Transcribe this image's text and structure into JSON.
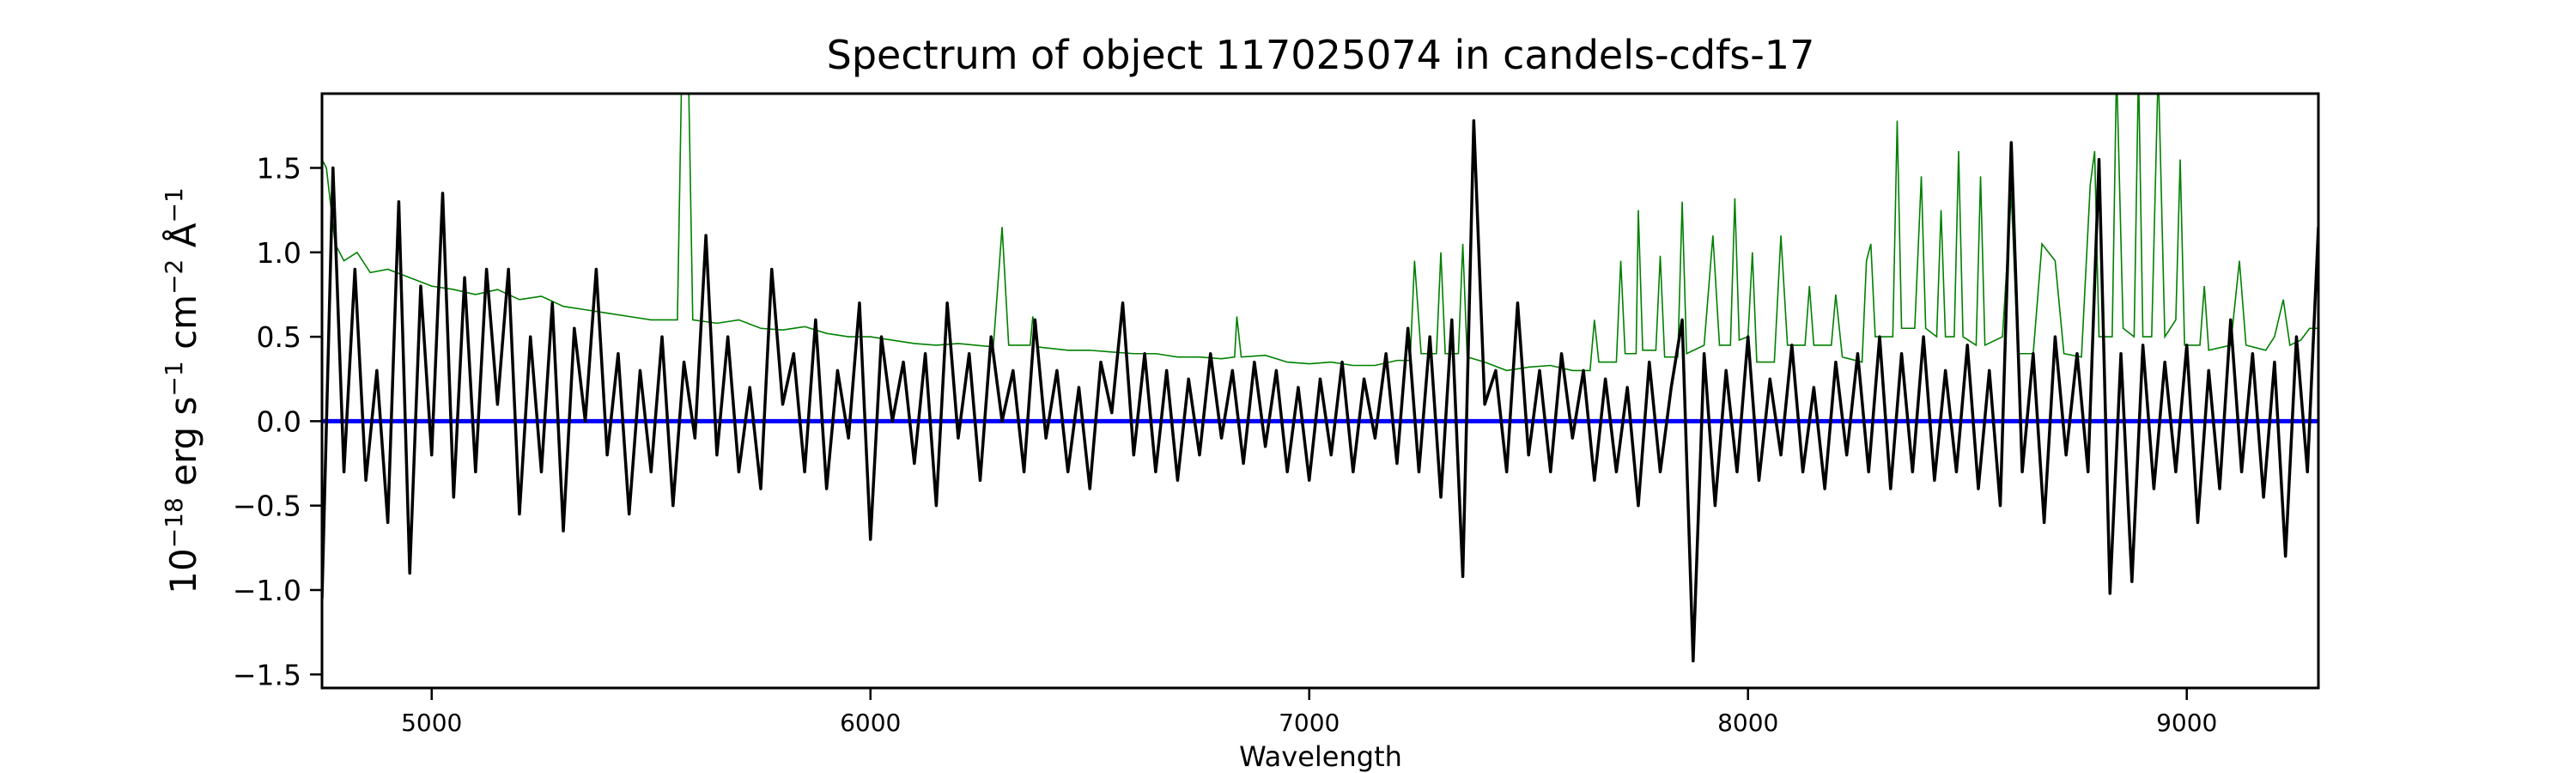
{
  "chart_data": {
    "type": "line",
    "title": "Spectrum of object 117025074 in candels-cdfs-17",
    "xlabel": "Wavelength",
    "ylabel_parts": [
      "10",
      "−18",
      " erg s",
      "−1",
      " cm",
      "−2",
      " Å",
      "−1"
    ],
    "xlim": [
      4750,
      9300
    ],
    "ylim": [
      -1.58,
      1.94
    ],
    "xticks": [
      5000,
      6000,
      7000,
      8000,
      9000
    ],
    "xtick_labels": [
      "5000",
      "6000",
      "7000",
      "8000",
      "9000"
    ],
    "yticks": [
      -1.5,
      -1.0,
      -0.5,
      0.0,
      0.5,
      1.0,
      1.5
    ],
    "ytick_labels": [
      "−1.5",
      "−1.0",
      "−0.5",
      "0.0",
      "0.5",
      "1.0",
      "1.5"
    ],
    "grid": false,
    "colors": {
      "flux": "#000000",
      "contam": "#008000",
      "model": "#0000ff"
    },
    "series": [
      {
        "name": "flux",
        "x_start": 4750,
        "x_step": 25,
        "values": [
          -1.05,
          1.5,
          -0.3,
          0.9,
          -0.35,
          0.3,
          -0.6,
          1.3,
          -0.9,
          0.8,
          -0.2,
          1.35,
          -0.45,
          0.85,
          -0.3,
          0.9,
          0.1,
          0.9,
          -0.55,
          0.5,
          -0.3,
          0.7,
          -0.65,
          0.55,
          0.0,
          0.9,
          -0.2,
          0.4,
          -0.55,
          0.3,
          -0.3,
          0.5,
          -0.5,
          0.35,
          -0.1,
          1.1,
          -0.2,
          0.5,
          -0.3,
          0.2,
          -0.4,
          0.9,
          0.1,
          0.4,
          -0.3,
          0.6,
          -0.4,
          0.3,
          -0.1,
          0.7,
          -0.7,
          0.5,
          0.0,
          0.35,
          -0.25,
          0.4,
          -0.5,
          0.7,
          -0.1,
          0.4,
          -0.35,
          0.5,
          0.0,
          0.3,
          -0.3,
          0.6,
          -0.1,
          0.3,
          -0.3,
          0.2,
          -0.4,
          0.35,
          0.05,
          0.7,
          -0.2,
          0.4,
          -0.3,
          0.3,
          -0.35,
          0.25,
          -0.2,
          0.4,
          -0.1,
          0.3,
          -0.25,
          0.35,
          -0.15,
          0.3,
          -0.3,
          0.2,
          -0.35,
          0.25,
          -0.2,
          0.35,
          -0.3,
          0.25,
          -0.1,
          0.4,
          -0.25,
          0.55,
          -0.3,
          0.5,
          -0.45,
          0.6,
          -0.92,
          1.78,
          0.1,
          0.3,
          -0.3,
          0.7,
          -0.2,
          0.3,
          -0.3,
          0.4,
          -0.1,
          0.3,
          -0.35,
          0.25,
          -0.3,
          0.2,
          -0.5,
          0.35,
          -0.3,
          0.2,
          0.6,
          -1.42,
          0.4,
          -0.5,
          0.3,
          -0.3,
          0.5,
          -0.35,
          0.25,
          -0.2,
          0.45,
          -0.3,
          0.2,
          -0.4,
          0.35,
          -0.2,
          0.4,
          -0.3,
          0.5,
          -0.4,
          0.4,
          -0.3,
          0.5,
          -0.35,
          0.3,
          -0.3,
          0.45,
          -0.4,
          0.3,
          -0.5,
          1.65,
          -0.3,
          0.4,
          -0.6,
          0.5,
          -0.2,
          0.4,
          -0.3,
          1.55,
          -1.02,
          0.4,
          -0.95,
          0.45,
          -0.4,
          0.35,
          -0.3,
          0.45,
          -0.6,
          0.3,
          -0.4,
          0.6,
          -0.3,
          0.4,
          -0.45,
          0.35,
          -0.8,
          0.5,
          -0.3,
          1.15
        ]
      },
      {
        "name": "contamination",
        "points": [
          [
            4750,
            1.55
          ],
          [
            4760,
            1.5
          ],
          [
            4780,
            1.05
          ],
          [
            4800,
            0.95
          ],
          [
            4830,
            1.0
          ],
          [
            4860,
            0.88
          ],
          [
            4900,
            0.9
          ],
          [
            4950,
            0.85
          ],
          [
            5000,
            0.8
          ],
          [
            5050,
            0.78
          ],
          [
            5100,
            0.75
          ],
          [
            5150,
            0.78
          ],
          [
            5200,
            0.72
          ],
          [
            5250,
            0.74
          ],
          [
            5300,
            0.68
          ],
          [
            5350,
            0.66
          ],
          [
            5400,
            0.64
          ],
          [
            5450,
            0.62
          ],
          [
            5500,
            0.6
          ],
          [
            5560,
            0.6
          ],
          [
            5570,
            2.1
          ],
          [
            5585,
            2.1
          ],
          [
            5595,
            0.6
          ],
          [
            5650,
            0.58
          ],
          [
            5700,
            0.6
          ],
          [
            5750,
            0.55
          ],
          [
            5800,
            0.54
          ],
          [
            5850,
            0.56
          ],
          [
            5900,
            0.52
          ],
          [
            5950,
            0.5
          ],
          [
            6000,
            0.5
          ],
          [
            6050,
            0.48
          ],
          [
            6100,
            0.46
          ],
          [
            6150,
            0.45
          ],
          [
            6200,
            0.46
          ],
          [
            6280,
            0.44
          ],
          [
            6300,
            1.15
          ],
          [
            6315,
            0.45
          ],
          [
            6364,
            0.45
          ],
          [
            6370,
            0.62
          ],
          [
            6380,
            0.44
          ],
          [
            6450,
            0.42
          ],
          [
            6500,
            0.42
          ],
          [
            6550,
            0.41
          ],
          [
            6600,
            0.4
          ],
          [
            6650,
            0.4
          ],
          [
            6700,
            0.38
          ],
          [
            6750,
            0.38
          ],
          [
            6800,
            0.37
          ],
          [
            6830,
            0.38
          ],
          [
            6835,
            0.62
          ],
          [
            6845,
            0.38
          ],
          [
            6900,
            0.39
          ],
          [
            6950,
            0.35
          ],
          [
            7000,
            0.34
          ],
          [
            7050,
            0.35
          ],
          [
            7100,
            0.33
          ],
          [
            7150,
            0.33
          ],
          [
            7200,
            0.36
          ],
          [
            7230,
            0.36
          ],
          [
            7240,
            0.95
          ],
          [
            7255,
            0.4
          ],
          [
            7290,
            0.4
          ],
          [
            7300,
            1.0
          ],
          [
            7310,
            0.4
          ],
          [
            7340,
            0.4
          ],
          [
            7350,
            1.05
          ],
          [
            7360,
            0.38
          ],
          [
            7400,
            0.35
          ],
          [
            7430,
            0.32
          ],
          [
            7450,
            0.3
          ],
          [
            7500,
            0.32
          ],
          [
            7550,
            0.33
          ],
          [
            7600,
            0.3
          ],
          [
            7640,
            0.3
          ],
          [
            7650,
            0.6
          ],
          [
            7660,
            0.35
          ],
          [
            7700,
            0.35
          ],
          [
            7710,
            0.95
          ],
          [
            7720,
            0.4
          ],
          [
            7745,
            0.4
          ],
          [
            7750,
            1.25
          ],
          [
            7760,
            0.42
          ],
          [
            7790,
            0.42
          ],
          [
            7800,
            0.98
          ],
          [
            7810,
            0.38
          ],
          [
            7840,
            0.38
          ],
          [
            7850,
            1.3
          ],
          [
            7860,
            0.4
          ],
          [
            7900,
            0.45
          ],
          [
            7920,
            1.1
          ],
          [
            7935,
            0.45
          ],
          [
            7960,
            0.45
          ],
          [
            7970,
            1.32
          ],
          [
            7980,
            0.48
          ],
          [
            8000,
            0.5
          ],
          [
            8010,
            1.0
          ],
          [
            8020,
            0.35
          ],
          [
            8060,
            0.35
          ],
          [
            8075,
            1.1
          ],
          [
            8090,
            0.45
          ],
          [
            8130,
            0.45
          ],
          [
            8140,
            0.8
          ],
          [
            8150,
            0.45
          ],
          [
            8190,
            0.45
          ],
          [
            8200,
            0.75
          ],
          [
            8215,
            0.38
          ],
          [
            8260,
            0.35
          ],
          [
            8270,
            0.95
          ],
          [
            8280,
            1.05
          ],
          [
            8290,
            0.5
          ],
          [
            8330,
            0.5
          ],
          [
            8340,
            1.78
          ],
          [
            8350,
            0.55
          ],
          [
            8380,
            0.55
          ],
          [
            8395,
            1.45
          ],
          [
            8405,
            0.55
          ],
          [
            8430,
            0.5
          ],
          [
            8440,
            1.25
          ],
          [
            8450,
            0.5
          ],
          [
            8470,
            0.5
          ],
          [
            8480,
            1.6
          ],
          [
            8490,
            0.5
          ],
          [
            8520,
            0.45
          ],
          [
            8530,
            1.45
          ],
          [
            8540,
            0.45
          ],
          [
            8580,
            0.5
          ],
          [
            8600,
            1.35
          ],
          [
            8615,
            0.4
          ],
          [
            8650,
            0.4
          ],
          [
            8670,
            1.05
          ],
          [
            8700,
            0.95
          ],
          [
            8720,
            0.4
          ],
          [
            8760,
            0.38
          ],
          [
            8780,
            1.4
          ],
          [
            8790,
            1.6
          ],
          [
            8800,
            0.5
          ],
          [
            8830,
            0.5
          ],
          [
            8840,
            2.1
          ],
          [
            8855,
            0.55
          ],
          [
            8880,
            0.5
          ],
          [
            8890,
            2.1
          ],
          [
            8900,
            0.5
          ],
          [
            8920,
            0.5
          ],
          [
            8935,
            2.1
          ],
          [
            8950,
            0.5
          ],
          [
            8975,
            0.6
          ],
          [
            8985,
            1.55
          ],
          [
            8995,
            0.45
          ],
          [
            9030,
            0.45
          ],
          [
            9040,
            0.8
          ],
          [
            9050,
            0.42
          ],
          [
            9100,
            0.45
          ],
          [
            9120,
            0.95
          ],
          [
            9135,
            0.45
          ],
          [
            9180,
            0.42
          ],
          [
            9200,
            0.5
          ],
          [
            9220,
            0.72
          ],
          [
            9235,
            0.45
          ],
          [
            9260,
            0.48
          ],
          [
            9280,
            0.55
          ],
          [
            9300,
            0.55
          ]
        ]
      },
      {
        "name": "model",
        "constant": 0.0
      }
    ]
  }
}
